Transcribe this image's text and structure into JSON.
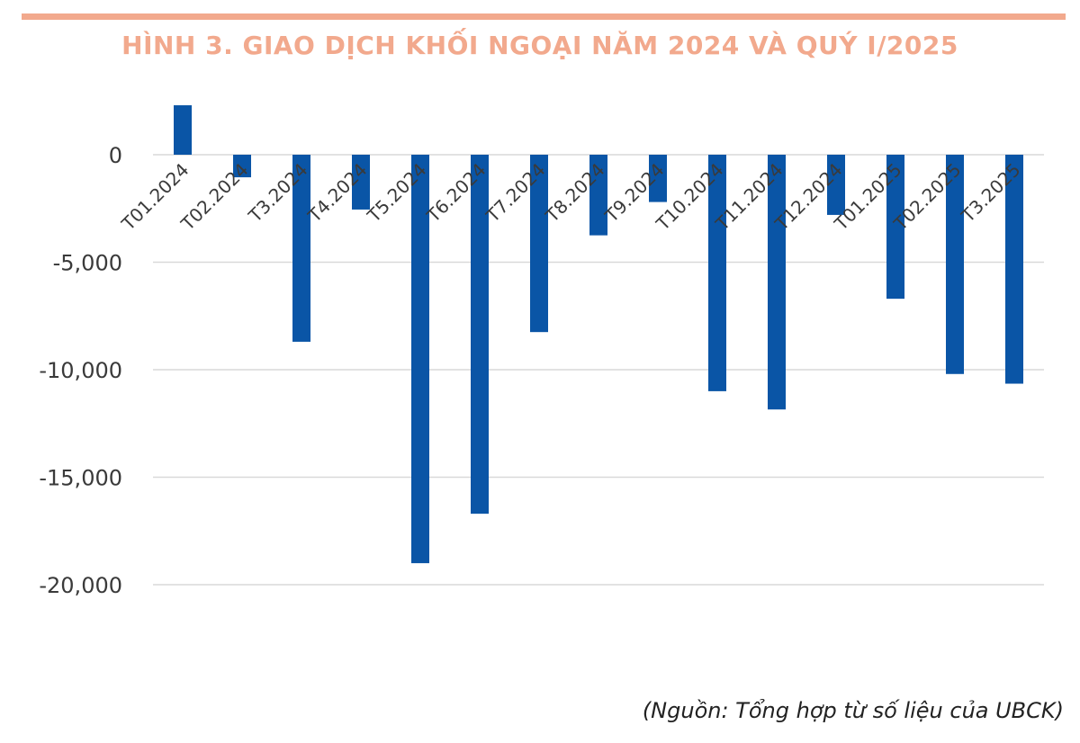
{
  "title": "HÌNH 3. GIAO DỊCH KHỐI NGOẠI NĂM 2024 VÀ QUÝ I/2025",
  "source": "(Nguồn: Tổng hợp từ số liệu của UBCK)",
  "colors": {
    "bar": "#0a55a6",
    "title": "#f2a98d",
    "grid": "#d9d9d9"
  },
  "chart_data": {
    "type": "bar",
    "categories": [
      "T01.2024",
      "T02.2024",
      "T3.2024",
      "T4.2024",
      "T5.2024",
      "T6.2024",
      "T7.2024",
      "T8.2024",
      "T9.2024",
      "T10.2024",
      "T11.2024",
      "T12.2024",
      "T01.2025",
      "T02.2025",
      "T3.2025"
    ],
    "values": [
      2300,
      -1050,
      -8700,
      -2550,
      -19000,
      -16700,
      -8250,
      -3750,
      -2200,
      -11000,
      -11850,
      -2800,
      -6700,
      -10200,
      -10650
    ],
    "ylim": [
      -20000,
      2300
    ],
    "yticks": [
      0,
      -5000,
      -10000,
      -15000,
      -20000
    ],
    "ytick_labels": [
      "0",
      "-5,000",
      "-10,000",
      "-15,000",
      "-20,000"
    ],
    "grid": true,
    "legend": "none"
  }
}
